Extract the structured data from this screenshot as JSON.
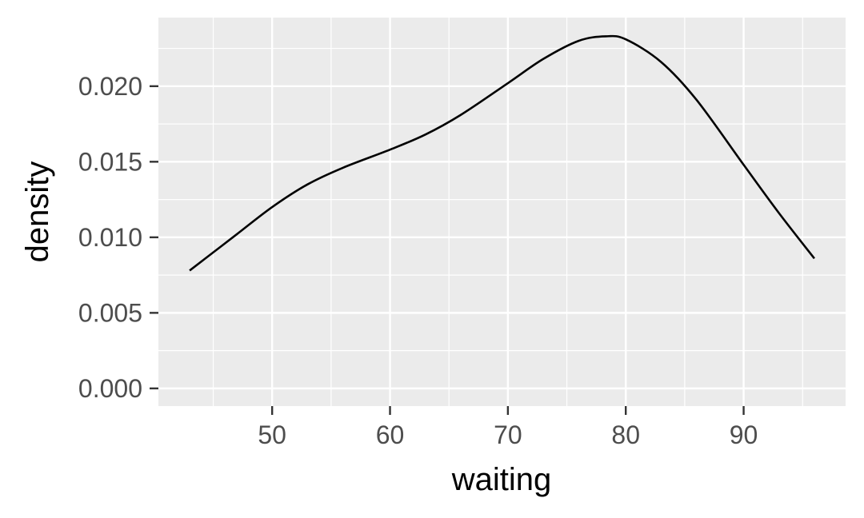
{
  "chart_data": {
    "type": "line",
    "title": "",
    "xlabel": "waiting",
    "ylabel": "density",
    "xlim": [
      40.35,
      98.65
    ],
    "ylim": [
      -0.00117,
      0.02454
    ],
    "x_ticks": [
      50,
      60,
      70,
      80,
      90
    ],
    "x_tick_labels": [
      "50",
      "60",
      "70",
      "80",
      "90"
    ],
    "y_ticks": [
      0.0,
      0.005,
      0.01,
      0.015,
      0.02
    ],
    "y_tick_labels": [
      "0.000",
      "0.005",
      "0.010",
      "0.015",
      "0.020"
    ],
    "grid": true,
    "series": [
      {
        "x": [
          43,
          45,
          47,
          50,
          53,
          56,
          60,
          63,
          66,
          70,
          73,
          76,
          78.3,
          80,
          83,
          86,
          90,
          93,
          96
        ],
        "y": [
          0.0078,
          0.009,
          0.0102,
          0.012,
          0.0135,
          0.0146,
          0.0158,
          0.0168,
          0.0181,
          0.0202,
          0.0218,
          0.023,
          0.0233,
          0.0231,
          0.0216,
          0.0191,
          0.0148,
          0.0116,
          0.0086
        ]
      }
    ],
    "colors": {
      "panel_background": "#ebebeb",
      "grid_major": "#ffffff",
      "grid_minor": "#ffffff",
      "line": "#000000",
      "tick_text": "#4d4d4d",
      "tick_mark": "#333333",
      "axis_title": "#000000"
    }
  }
}
